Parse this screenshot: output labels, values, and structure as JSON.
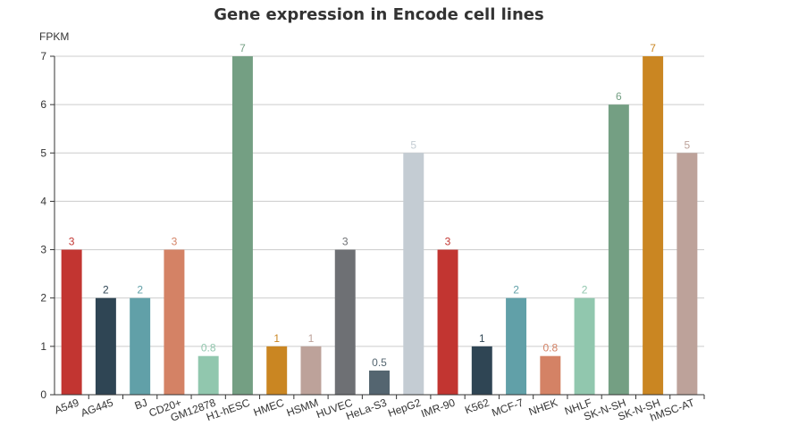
{
  "chart_data": {
    "type": "bar",
    "title": "Gene expression in Encode cell lines",
    "y_unit": "FPKM",
    "xlabel": "",
    "ylabel": "",
    "ylim": [
      0,
      7
    ],
    "y_ticks": [
      "0",
      "1",
      "2",
      "3",
      "4",
      "5",
      "6",
      "7"
    ],
    "grid": true,
    "legend": "none",
    "categories": [
      "A549",
      "AG445",
      "BJ",
      "CD20+",
      "GM12878",
      "H1-hESC",
      "HMEC",
      "HSMM",
      "HUVEC",
      "HeLa-S3",
      "HepG2",
      "IMR-90",
      "K562",
      "MCF-7",
      "NHEK",
      "NHLF",
      "SK-N-SH",
      "SK-N-SH",
      "hMSC-AT"
    ],
    "values": [
      3,
      2,
      2,
      3,
      0.8,
      7,
      1,
      1,
      3,
      0.5,
      5,
      3,
      1,
      2,
      0.8,
      2,
      6,
      7,
      5
    ],
    "value_labels": [
      "3",
      "2",
      "2",
      "3",
      "0.8",
      "7",
      "1",
      "1",
      "3",
      "0.5",
      "5",
      "3",
      "1",
      "2",
      "0.8",
      "2",
      "6",
      "7",
      "5"
    ],
    "colors": [
      "#c23531",
      "#2f4554",
      "#61a0a8",
      "#d48265",
      "#91c7ae",
      "#749f83",
      "#ca8622",
      "#bda29a",
      "#6e7074",
      "#546570",
      "#c4ccd3",
      "#c23531",
      "#2f4554",
      "#61a0a8",
      "#d48265",
      "#91c7ae",
      "#749f83",
      "#ca8622",
      "#bda29a"
    ]
  }
}
